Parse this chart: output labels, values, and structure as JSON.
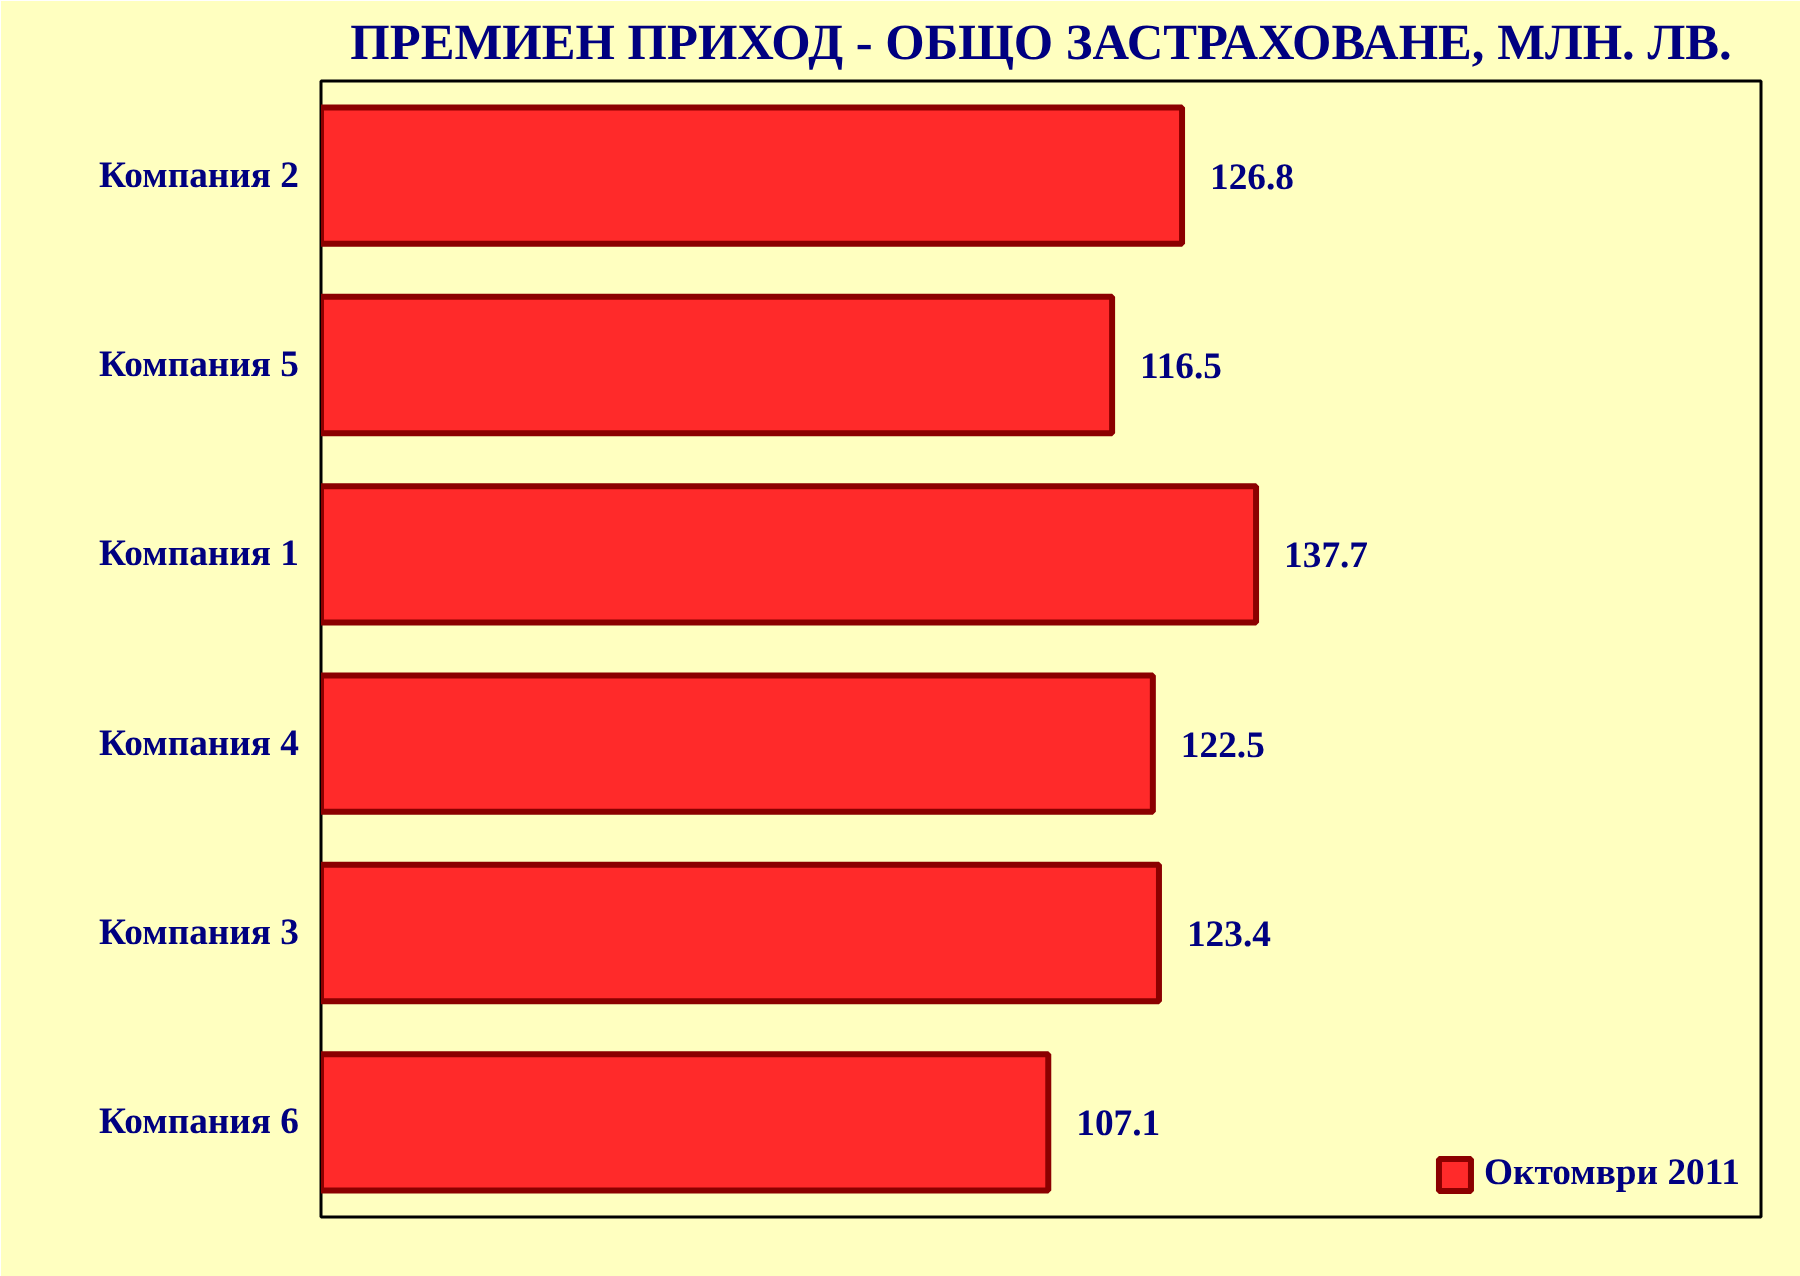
{
  "chart_data": {
    "type": "bar",
    "orientation": "horizontal",
    "title": "ПРЕМИЕН ПРИХОД - ОБЩО ЗАСТРАХОВАНЕ, МЛН. ЛВ.",
    "categories": [
      "Компания 2",
      "Компания 5",
      "Компания 1",
      "Компания 4",
      "Компания 3",
      "Компания 6"
    ],
    "series": [
      {
        "name": "Октомври 2011",
        "color": "#ff2a2a",
        "values": [
          126.8,
          116.5,
          137.7,
          122.5,
          123.4,
          107.1
        ]
      }
    ],
    "data_labels": true,
    "legend": "bottom right",
    "grid": false
  }
}
